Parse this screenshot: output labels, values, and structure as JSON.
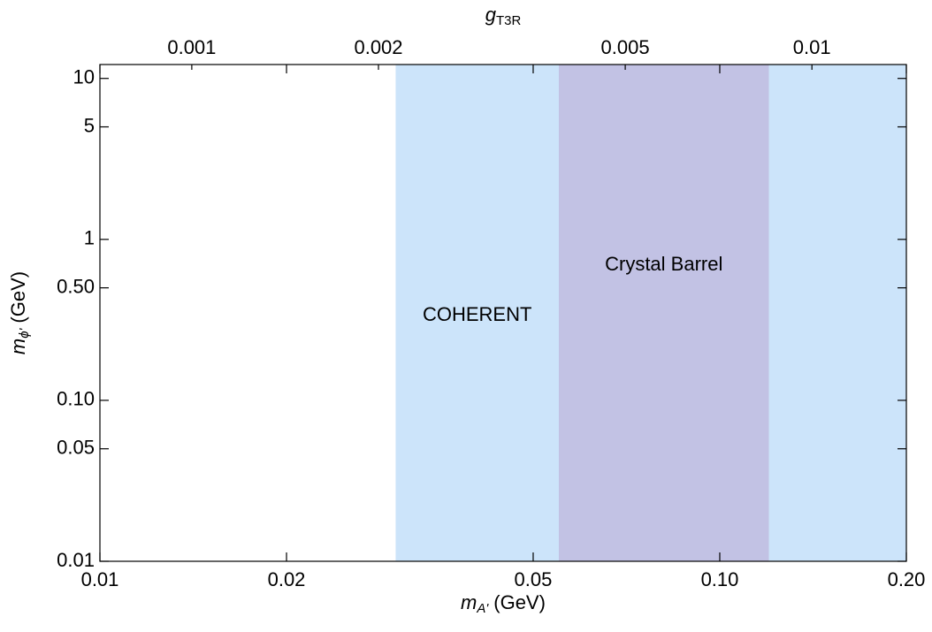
{
  "chart_data": {
    "type": "region",
    "xlabel": {
      "symbol": "m",
      "subscript": "A'",
      "unit": "(GeV)"
    },
    "ylabel": {
      "symbol": "m",
      "subscript": "ϕ'",
      "unit": "(GeV)"
    },
    "x2label": {
      "symbol": "g",
      "subscript": "T3R"
    },
    "xlog": true,
    "ylog": true,
    "x2log": true,
    "xlim": [
      0.01,
      0.2
    ],
    "xticks": [
      0.01,
      0.02,
      0.05,
      {
        "value": 0.1,
        "label": "0.10"
      },
      {
        "value": 0.2,
        "label": "0.20"
      }
    ],
    "ylim": [
      0.01,
      12.2
    ],
    "yticks": [
      0.01,
      0.05,
      {
        "value": 0.1,
        "label": "0.10"
      },
      {
        "value": 0.5,
        "label": "0.50"
      },
      1,
      5,
      10
    ],
    "x2lim": [
      0.000711,
      0.0142
    ],
    "x2ticks": [
      0.001,
      0.002,
      0.005,
      0.01
    ],
    "regions": [
      {
        "name": "COHERENT",
        "color": "#cce4fa",
        "label_color": "#1f8ce6",
        "x": [
          0.03,
          0.2
        ]
      },
      {
        "name": "Crystal Barrel",
        "color": "#c2c2e4",
        "label_color": "#9a5ca0",
        "x": [
          0.055,
          0.12
        ]
      }
    ]
  }
}
